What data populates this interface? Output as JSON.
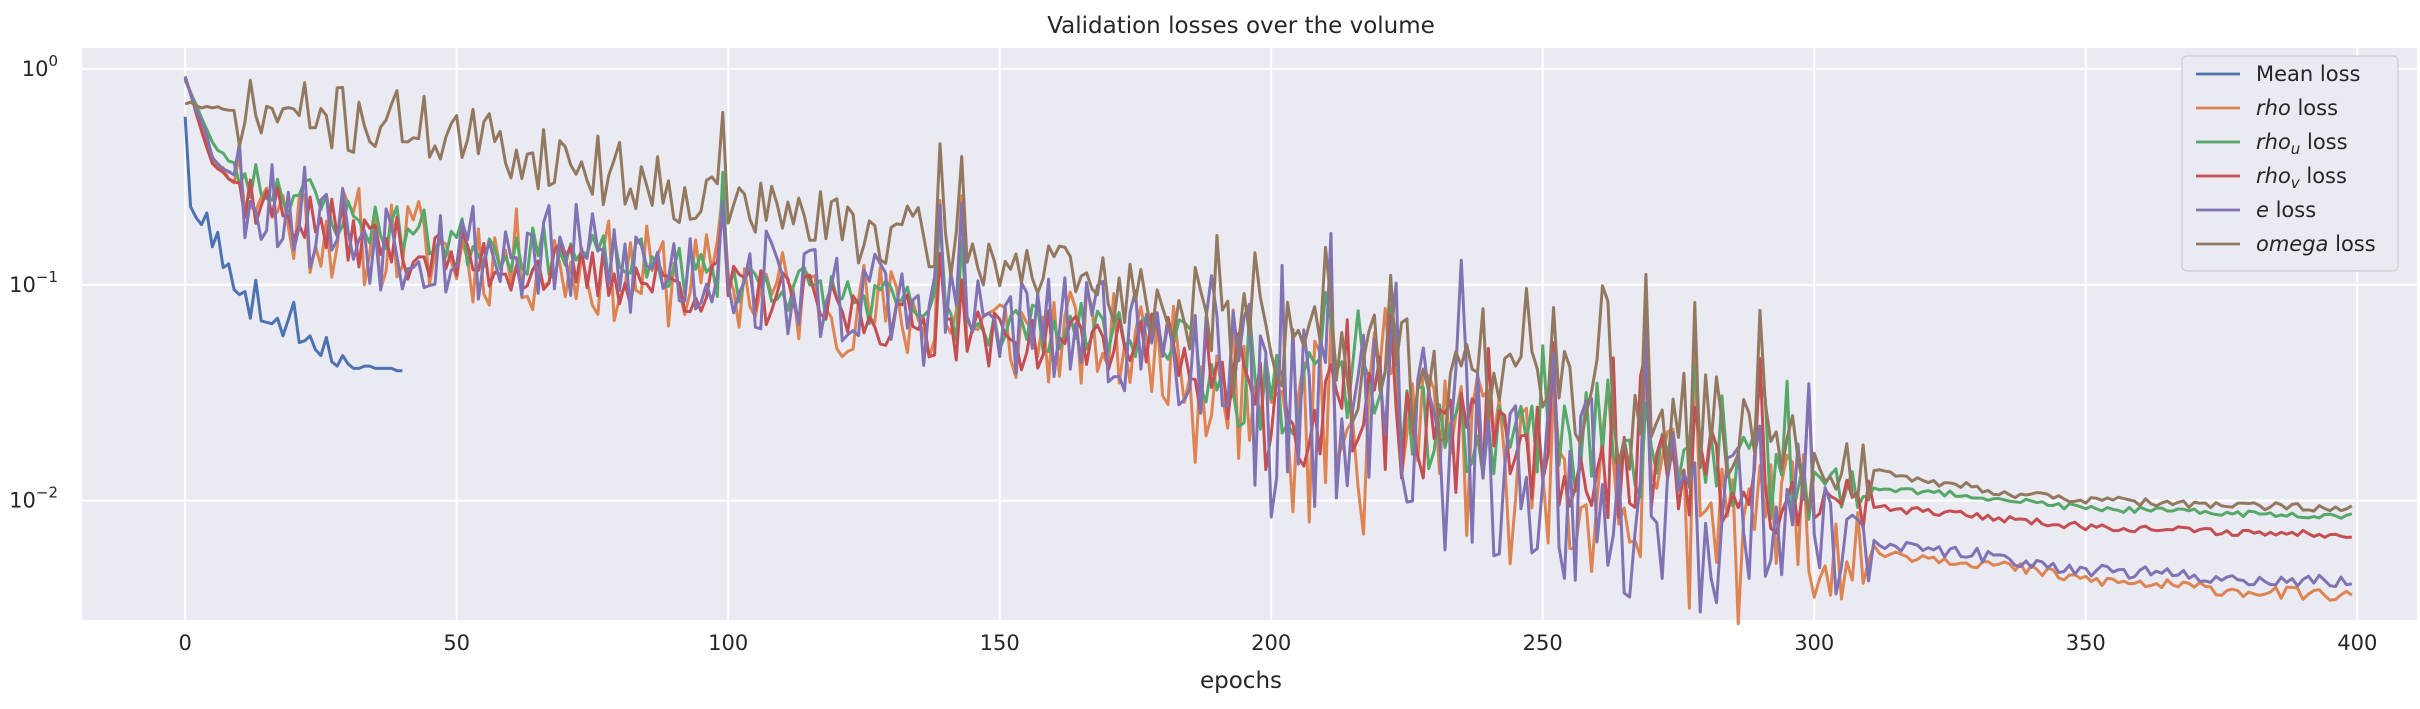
{
  "chart_data": {
    "type": "line",
    "title": "Validation losses over the volume",
    "xlabel": "epochs",
    "ylabel": "",
    "yscale": "log",
    "xlim": [
      -19,
      411
    ],
    "ylim": [
      0.0028,
      1.25
    ],
    "xticks": [
      0,
      50,
      100,
      150,
      200,
      250,
      300,
      350,
      400
    ],
    "xtick_labels": [
      "0",
      "50",
      "100",
      "150",
      "200",
      "250",
      "300",
      "350",
      "400"
    ],
    "yticks": [
      1,
      0.1,
      0.01
    ],
    "ytick_labels": [
      {
        "base": "10",
        "exp": "0"
      },
      {
        "base": "10",
        "exp": "−1"
      },
      {
        "base": "10",
        "exp": "−2"
      }
    ],
    "grid": true,
    "legend_position": "top-right",
    "series": [
      {
        "name": "Mean loss",
        "color": "#4c72b0",
        "x": [
          0,
          1,
          2,
          3,
          4,
          5,
          6,
          7,
          8,
          9,
          10,
          11,
          12,
          13,
          14,
          15,
          16,
          17,
          18,
          19,
          20,
          21,
          22,
          23,
          24,
          25,
          26,
          27,
          28,
          29,
          30,
          31,
          32,
          33,
          34,
          35,
          36,
          37,
          38,
          39,
          40
        ],
        "y": [
          0.6,
          0.23,
          0.205,
          0.19,
          0.215,
          0.15,
          0.175,
          0.12,
          0.125,
          0.095,
          0.09,
          0.093,
          0.07,
          0.105,
          0.068,
          0.067,
          0.066,
          0.07,
          0.058,
          0.069,
          0.083,
          0.054,
          0.055,
          0.058,
          0.05,
          0.047,
          0.057,
          0.044,
          0.042,
          0.047,
          0.043,
          0.041,
          0.041,
          0.042,
          0.042,
          0.041,
          0.041,
          0.041,
          0.041,
          0.04,
          0.04
        ]
      },
      {
        "name": "rho loss",
        "color": "#dd8452",
        "x": [
          0,
          5,
          10,
          15,
          20,
          30,
          50,
          100,
          150,
          180,
          200,
          210,
          220,
          230,
          250,
          260,
          270,
          280,
          290,
          300,
          330,
          350,
          380,
          399
        ],
        "y": [
          0.95,
          0.38,
          0.29,
          0.24,
          0.2,
          0.17,
          0.14,
          0.1,
          0.06,
          0.05,
          0.022,
          0.02,
          0.017,
          0.016,
          0.012,
          0.0105,
          0.0092,
          0.0078,
          0.0068,
          0.0062,
          0.0052,
          0.0043,
          0.0038,
          0.0036
        ],
        "noise": 0.24,
        "spikes": true,
        "seed": 11
      },
      {
        "name": "rho_u loss",
        "color": "#55a868",
        "x": [
          0,
          5,
          10,
          15,
          20,
          30,
          50,
          100,
          150,
          180,
          200,
          210,
          220,
          230,
          250,
          260,
          270,
          280,
          290,
          300,
          330,
          350,
          380,
          399
        ],
        "y": [
          0.9,
          0.45,
          0.34,
          0.29,
          0.27,
          0.2,
          0.16,
          0.11,
          0.065,
          0.06,
          0.027,
          0.03,
          0.027,
          0.022,
          0.019,
          0.0175,
          0.016,
          0.0155,
          0.0135,
          0.012,
          0.0105,
          0.0092,
          0.0087,
          0.0085
        ],
        "noise": 0.12,
        "spikes": false,
        "seed": 23
      },
      {
        "name": "rho_v loss",
        "color": "#c44e52",
        "x": [
          0,
          5,
          10,
          15,
          20,
          30,
          50,
          100,
          150,
          180,
          200,
          210,
          220,
          230,
          250,
          260,
          270,
          280,
          290,
          300,
          330,
          350,
          380,
          399
        ],
        "y": [
          0.92,
          0.37,
          0.28,
          0.23,
          0.21,
          0.17,
          0.13,
          0.095,
          0.055,
          0.055,
          0.023,
          0.024,
          0.022,
          0.019,
          0.016,
          0.0142,
          0.0132,
          0.0125,
          0.011,
          0.0098,
          0.0085,
          0.0076,
          0.0071,
          0.007
        ],
        "noise": 0.14,
        "spikes": false,
        "seed": 37
      },
      {
        "name": "e loss",
        "color": "#8172b3",
        "x": [
          0,
          5,
          10,
          15,
          20,
          30,
          50,
          100,
          150,
          180,
          200,
          210,
          220,
          230,
          250,
          260,
          270,
          280,
          290,
          300,
          330,
          350,
          380,
          399
        ],
        "y": [
          0.95,
          0.4,
          0.3,
          0.25,
          0.22,
          0.18,
          0.15,
          0.11,
          0.065,
          0.055,
          0.024,
          0.022,
          0.019,
          0.017,
          0.013,
          0.0112,
          0.0098,
          0.0085,
          0.0073,
          0.0066,
          0.0056,
          0.0048,
          0.0043,
          0.0042
        ],
        "noise": 0.26,
        "spikes": true,
        "seed": 53
      },
      {
        "name": "omega loss",
        "color": "#937860",
        "x": [
          0,
          5,
          10,
          20,
          30,
          40,
          50,
          60,
          70,
          80,
          90,
          100,
          110,
          120,
          130,
          140,
          150,
          170,
          190,
          200,
          210,
          220,
          230,
          240,
          250,
          260,
          270,
          280,
          290,
          300,
          320,
          340,
          360,
          380,
          399
        ],
        "y": [
          0.7,
          0.65,
          0.63,
          0.61,
          0.58,
          0.56,
          0.49,
          0.42,
          0.38,
          0.32,
          0.28,
          0.24,
          0.21,
          0.19,
          0.17,
          0.15,
          0.13,
          0.095,
          0.065,
          0.05,
          0.045,
          0.04,
          0.035,
          0.033,
          0.03,
          0.028,
          0.025,
          0.02,
          0.018,
          0.015,
          0.0125,
          0.0105,
          0.0098,
          0.0094,
          0.0093
        ],
        "noise": 0.16,
        "spikes": false,
        "seed": 71
      }
    ]
  }
}
